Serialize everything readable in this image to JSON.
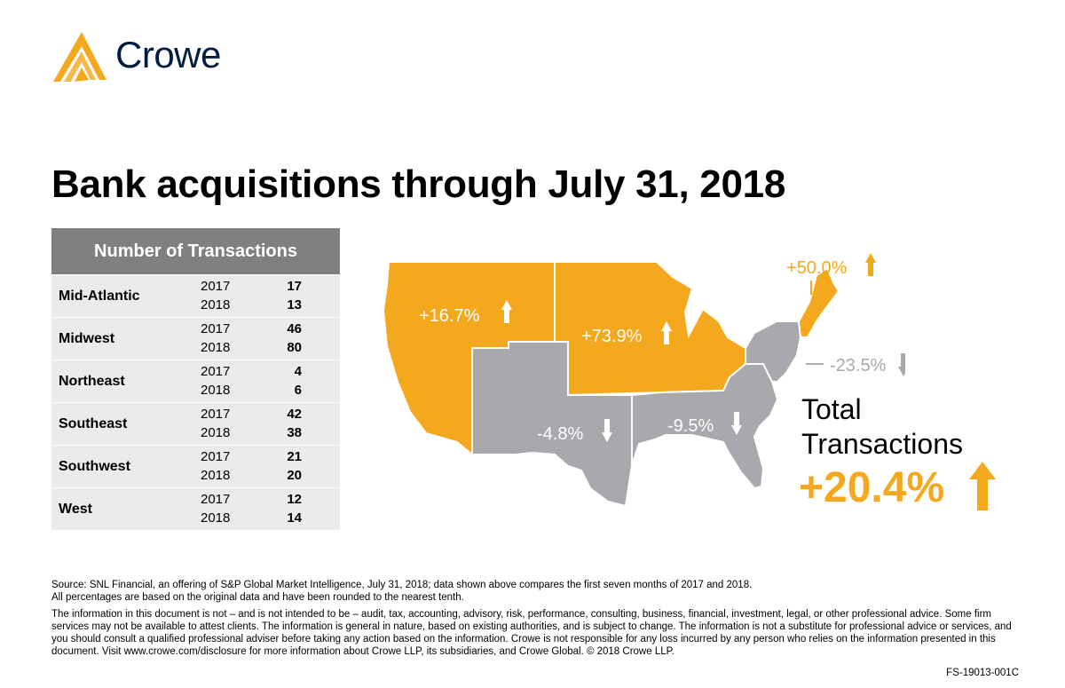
{
  "brand": {
    "name": "Crowe",
    "logo_color": "#011e41",
    "mark_color": "#f4a81d"
  },
  "title": "Bank acquisitions through July 31, 2018",
  "table": {
    "header": "Number of Transactions",
    "rows": [
      {
        "region": "Mid-Atlantic",
        "y1": "2017",
        "v1": "17",
        "y2": "2018",
        "v2": "13"
      },
      {
        "region": "Midwest",
        "y1": "2017",
        "v1": "46",
        "y2": "2018",
        "v2": "80"
      },
      {
        "region": "Northeast",
        "y1": "2017",
        "v1": "4",
        "y2": "2018",
        "v2": "6"
      },
      {
        "region": "Southeast",
        "y1": "2017",
        "v1": "42",
        "y2": "2018",
        "v2": "38"
      },
      {
        "region": "Southwest",
        "y1": "2017",
        "v1": "21",
        "y2": "2018",
        "v2": "20"
      },
      {
        "region": "West",
        "y1": "2017",
        "v1": "12",
        "y2": "2018",
        "v2": "14"
      }
    ]
  },
  "chart_data": {
    "type": "table",
    "categories": [
      "Mid-Atlantic",
      "Midwest",
      "Northeast",
      "Southeast",
      "Southwest",
      "West"
    ],
    "series": [
      {
        "name": "2017",
        "values": [
          17,
          46,
          4,
          42,
          21,
          12
        ]
      },
      {
        "name": "2018",
        "values": [
          13,
          80,
          6,
          38,
          20,
          14
        ]
      }
    ],
    "map_changes": [
      {
        "region": "West",
        "label": "+16.7%",
        "direction": "up"
      },
      {
        "region": "Midwest",
        "label": "+73.9%",
        "direction": "up"
      },
      {
        "region": "Northeast",
        "label": "+50.0%",
        "direction": "up"
      },
      {
        "region": "Mid-Atlantic",
        "label": "-23.5%",
        "direction": "down"
      },
      {
        "region": "Southwest",
        "label": "-4.8%",
        "direction": "down"
      },
      {
        "region": "Southeast",
        "label": "-9.5%",
        "direction": "down"
      }
    ],
    "colors": {
      "increase": "#f4a81d",
      "decrease": "#a7a9ac"
    }
  },
  "total": {
    "line1": "Total",
    "line2": "Transactions",
    "value": "+20.4%",
    "direction": "up"
  },
  "source": [
    "Source: SNL Financial, an offering of S&P Global Market Intelligence, July 31, 2018; data shown above compares the first seven months of 2017 and 2018.",
    "All percentages are based on the original data and have been rounded to the nearest tenth."
  ],
  "disclaimer": "The information in this document is not – and is not intended to be – audit, tax, accounting, advisory, risk, performance, consulting, business, financial, investment, legal, or other professional advice. Some firm services may not be available to attest clients. The information is general in nature, based on existing authorities, and is subject to change. The information is not a substitute for professional advice or services, and you should consult a qualified professional adviser before taking any action based on the information. Crowe is not responsible for any loss incurred by any person who relies on the information presented in this document. Visit www.crowe.com/disclosure for more information about Crowe LLP, its subsidiaries, and Crowe Global. © 2018 Crowe LLP.",
  "code": "FS-19013-001C"
}
